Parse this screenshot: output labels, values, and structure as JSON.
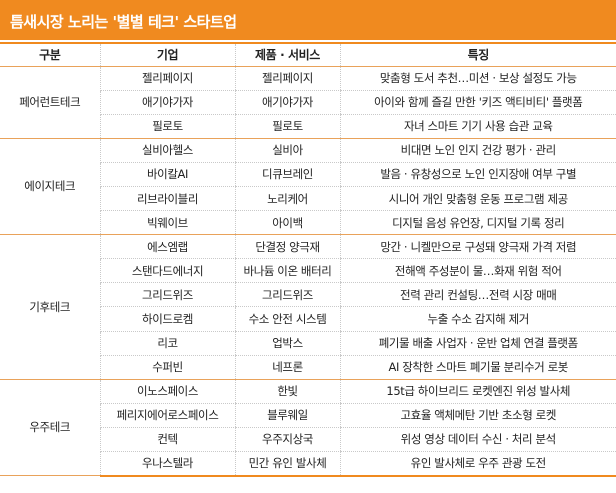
{
  "title": "틈새시장 노리는 '별별 테크' 스타트업",
  "columns": [
    "구분",
    "기업",
    "제품 · 서비스",
    "특징"
  ],
  "groups": [
    {
      "category": "페어런트테크",
      "rows": [
        {
          "company": "젤리페이지",
          "product": "젤리페이지",
          "feature": "맞춤형 도서 추천…미션 · 보상 설정도 가능"
        },
        {
          "company": "애기야가자",
          "product": "애기야가자",
          "feature": "아이와 함께 즐길 만한 '키즈 액티비티' 플랫폼"
        },
        {
          "company": "필로토",
          "product": "필로토",
          "feature": "자녀 스마트 기기 사용 습관 교육"
        }
      ]
    },
    {
      "category": "에이지테크",
      "rows": [
        {
          "company": "실비아헬스",
          "product": "실비아",
          "feature": "비대면 노인 인지 건강 평가 · 관리"
        },
        {
          "company": "바이칼AI",
          "product": "디큐브레인",
          "feature": "발음 · 유창성으로 노인 인지장애 여부 구별"
        },
        {
          "company": "리브라이블리",
          "product": "노리케어",
          "feature": "시니어 개인 맞춤형 운동 프로그램 제공"
        },
        {
          "company": "빅웨이브",
          "product": "아이백",
          "feature": "디지털 음성 유언장, 디지털 기록 정리"
        }
      ]
    },
    {
      "category": "기후테크",
      "rows": [
        {
          "company": "에스엠랩",
          "product": "단결정 양극재",
          "feature": "망간 · 니켈만으로 구성돼 양극재 가격 저렴"
        },
        {
          "company": "스탠다드에너지",
          "product": "바나듐 이온 배터리",
          "feature": "전해액 주성분이 물…화재 위험 적어"
        },
        {
          "company": "그리드위즈",
          "product": "그리드위즈",
          "feature": "전력 관리 컨설팅…전력 시장 매매"
        },
        {
          "company": "하이드로켐",
          "product": "수소 안전 시스템",
          "feature": "누출 수소 감지해 제거"
        },
        {
          "company": "리코",
          "product": "업박스",
          "feature": "폐기물 배출 사업자 · 운반 업체 연결 플랫폼"
        },
        {
          "company": "수퍼빈",
          "product": "네프론",
          "feature": "AI 장착한 스마트 폐기물 분리수거 로봇"
        }
      ]
    },
    {
      "category": "우주테크",
      "rows": [
        {
          "company": "이노스페이스",
          "product": "한빛",
          "feature": "15t급 하이브리드 로켓엔진 위성 발사체"
        },
        {
          "company": "페리지에어로스페이스",
          "product": "블루웨일",
          "feature": "고효율 액체메탄 기반 초소형 로켓"
        },
        {
          "company": "컨텍",
          "product": "우주지상국",
          "feature": "위성 영상 데이터 수신 · 처리 분석"
        },
        {
          "company": "우나스텔라",
          "product": "민간 유인 발사체",
          "feature": "유인 발사체로 우주 관광 도전"
        }
      ]
    }
  ]
}
